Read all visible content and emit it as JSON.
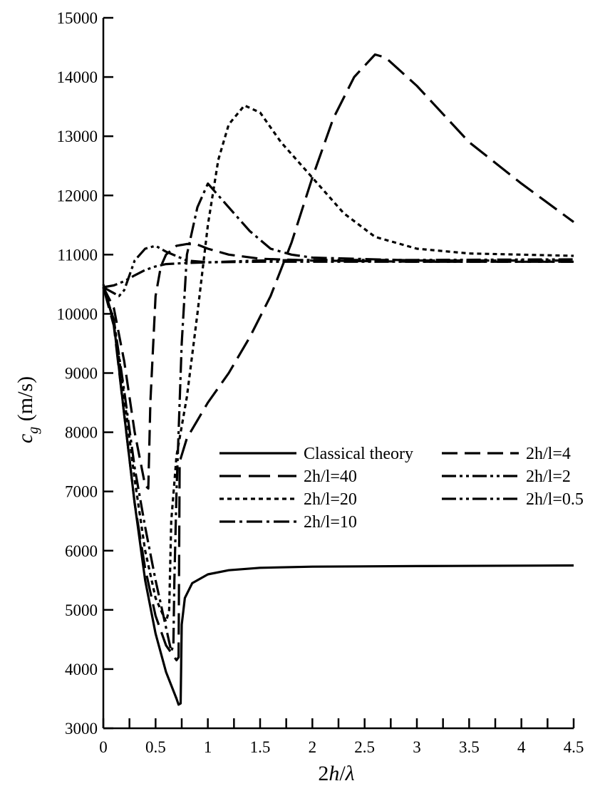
{
  "chart_data": {
    "type": "line",
    "xlabel": "2h/λ",
    "ylabel": "c_g (m/s)",
    "xlim": [
      0,
      4.5
    ],
    "ylim": [
      3000,
      15000
    ],
    "x_ticks": [
      0,
      0.5,
      1,
      1.5,
      2,
      2.5,
      3,
      3.5,
      4,
      4.5
    ],
    "x_tick_labels": [
      "0",
      "0.5",
      "1",
      "1.5",
      "2",
      "2.5",
      "3",
      "3.5",
      "4",
      "4.5"
    ],
    "y_ticks": [
      3000,
      4000,
      5000,
      6000,
      7000,
      8000,
      9000,
      10000,
      11000,
      12000,
      13000,
      14000,
      15000
    ],
    "y_tick_labels": [
      "3000",
      "4000",
      "5000",
      "6000",
      "7000",
      "8000",
      "9000",
      "10000",
      "11000",
      "12000",
      "13000",
      "14000",
      "15000"
    ],
    "grid": false,
    "legend_position": "center-right",
    "series": [
      {
        "name": "Classical theory",
        "dash": "solid",
        "points": [
          [
            0,
            10500
          ],
          [
            0.1,
            9850
          ],
          [
            0.2,
            8300
          ],
          [
            0.3,
            6800
          ],
          [
            0.4,
            5500
          ],
          [
            0.5,
            4600
          ],
          [
            0.6,
            3950
          ],
          [
            0.7,
            3500
          ],
          [
            0.72,
            3400
          ],
          [
            0.74,
            3420
          ],
          [
            0.75,
            4750
          ],
          [
            0.78,
            5200
          ],
          [
            0.85,
            5450
          ],
          [
            1.0,
            5600
          ],
          [
            1.2,
            5670
          ],
          [
            1.5,
            5710
          ],
          [
            2.0,
            5730
          ],
          [
            3.0,
            5740
          ],
          [
            4.5,
            5750
          ]
        ]
      },
      {
        "name": "2h/l=40",
        "dash": "longdash",
        "points": [
          [
            0,
            10450
          ],
          [
            0.1,
            9800
          ],
          [
            0.2,
            8300
          ],
          [
            0.3,
            6800
          ],
          [
            0.4,
            5700
          ],
          [
            0.5,
            4900
          ],
          [
            0.6,
            4400
          ],
          [
            0.7,
            4150
          ],
          [
            0.72,
            4200
          ],
          [
            0.73,
            7500
          ],
          [
            0.8,
            7900
          ],
          [
            1.0,
            8500
          ],
          [
            1.2,
            9000
          ],
          [
            1.4,
            9600
          ],
          [
            1.6,
            10300
          ],
          [
            1.8,
            11200
          ],
          [
            2.0,
            12300
          ],
          [
            2.2,
            13300
          ],
          [
            2.4,
            14000
          ],
          [
            2.6,
            14380
          ],
          [
            2.7,
            14330
          ],
          [
            3.0,
            13850
          ],
          [
            3.5,
            12900
          ],
          [
            4.0,
            12200
          ],
          [
            4.5,
            11550
          ]
        ]
      },
      {
        "name": "2h/l=20",
        "dash": "shortdash",
        "points": [
          [
            0,
            10450
          ],
          [
            0.1,
            9900
          ],
          [
            0.2,
            8600
          ],
          [
            0.3,
            7200
          ],
          [
            0.4,
            6000
          ],
          [
            0.5,
            5200
          ],
          [
            0.6,
            4800
          ],
          [
            0.63,
            5000
          ],
          [
            0.65,
            6500
          ],
          [
            0.7,
            7600
          ],
          [
            0.8,
            8600
          ],
          [
            0.9,
            10000
          ],
          [
            1.0,
            11500
          ],
          [
            1.1,
            12600
          ],
          [
            1.2,
            13200
          ],
          [
            1.35,
            13520
          ],
          [
            1.5,
            13400
          ],
          [
            1.7,
            12900
          ],
          [
            2.0,
            12300
          ],
          [
            2.3,
            11700
          ],
          [
            2.6,
            11300
          ],
          [
            3.0,
            11100
          ],
          [
            3.5,
            11020
          ],
          [
            4.5,
            10980
          ]
        ]
      },
      {
        "name": "2h/l=10",
        "dash": "dashdot",
        "points": [
          [
            0,
            10450
          ],
          [
            0.1,
            9900
          ],
          [
            0.2,
            8700
          ],
          [
            0.3,
            7400
          ],
          [
            0.4,
            6400
          ],
          [
            0.5,
            5500
          ],
          [
            0.6,
            4700
          ],
          [
            0.65,
            4300
          ],
          [
            0.67,
            4400
          ],
          [
            0.68,
            5500
          ],
          [
            0.7,
            7000
          ],
          [
            0.75,
            9500
          ],
          [
            0.8,
            11000
          ],
          [
            0.9,
            11800
          ],
          [
            1.0,
            12200
          ],
          [
            1.2,
            11800
          ],
          [
            1.4,
            11400
          ],
          [
            1.6,
            11100
          ],
          [
            1.8,
            11000
          ],
          [
            2.0,
            10950
          ],
          [
            3.0,
            10900
          ],
          [
            4.5,
            10900
          ]
        ]
      },
      {
        "name": "2h/l=4",
        "dash": "medlongdash",
        "points": [
          [
            0,
            10450
          ],
          [
            0.1,
            10100
          ],
          [
            0.2,
            9200
          ],
          [
            0.3,
            8000
          ],
          [
            0.4,
            7100
          ],
          [
            0.43,
            7050
          ],
          [
            0.45,
            8500
          ],
          [
            0.5,
            10300
          ],
          [
            0.55,
            10800
          ],
          [
            0.6,
            11000
          ],
          [
            0.7,
            11150
          ],
          [
            0.8,
            11180
          ],
          [
            0.9,
            11170
          ],
          [
            1.0,
            11100
          ],
          [
            1.2,
            11000
          ],
          [
            1.5,
            10930
          ],
          [
            2.0,
            10900
          ],
          [
            3.0,
            10880
          ],
          [
            4.5,
            10880
          ]
        ]
      },
      {
        "name": "2h/l=2",
        "dash": "dashdotdot",
        "points": [
          [
            0,
            10450
          ],
          [
            0.05,
            10400
          ],
          [
            0.1,
            10350
          ],
          [
            0.15,
            10300
          ],
          [
            0.2,
            10400
          ],
          [
            0.3,
            10900
          ],
          [
            0.4,
            11100
          ],
          [
            0.5,
            11150
          ],
          [
            0.6,
            11050
          ],
          [
            0.8,
            10900
          ],
          [
            1.0,
            10870
          ],
          [
            1.5,
            10900
          ],
          [
            2.0,
            10910
          ],
          [
            3.0,
            10910
          ],
          [
            4.5,
            10920
          ]
        ]
      },
      {
        "name": "2h/l=0.5",
        "dash": "dashdotdot",
        "points": [
          [
            0,
            10450
          ],
          [
            0.1,
            10480
          ],
          [
            0.2,
            10550
          ],
          [
            0.3,
            10650
          ],
          [
            0.4,
            10740
          ],
          [
            0.5,
            10800
          ],
          [
            0.6,
            10840
          ],
          [
            0.8,
            10860
          ],
          [
            1.0,
            10870
          ],
          [
            1.5,
            10880
          ],
          [
            2.0,
            10880
          ],
          [
            3.0,
            10880
          ],
          [
            4.5,
            10880
          ]
        ]
      }
    ],
    "legend": [
      {
        "text": "Classical theory",
        "series": 0
      },
      {
        "text": "2h/l=40",
        "series": 1
      },
      {
        "text": "2h/l=20",
        "series": 2
      },
      {
        "text": "2h/l=10",
        "series": 3
      },
      {
        "text": "2h/l=4",
        "series": 4
      },
      {
        "text": "2h/l=2",
        "series": 5
      },
      {
        "text": "2h/l=0.5",
        "series": 6
      }
    ]
  }
}
